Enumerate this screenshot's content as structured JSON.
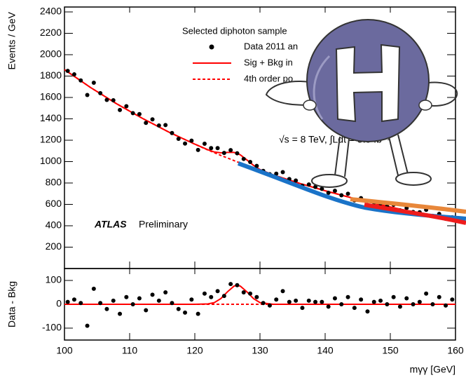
{
  "chart_data": [
    {
      "type": "line",
      "ylabel": "Events / GeV",
      "xlim": [
        100,
        160
      ],
      "ylim": [
        0,
        2400
      ],
      "yticks": [
        200,
        400,
        600,
        800,
        1000,
        1200,
        1400,
        1600,
        1800,
        2000,
        2200,
        2400
      ],
      "legend": "upper center",
      "annotations": [
        "Selected diphoton sample",
        "√s = 8 TeV, ∫Ldt = 5.9 fb⁻¹",
        "ATLAS",
        "Preliminary"
      ],
      "series": [
        {
          "name": "Data 2011 an",
          "color": "#000000",
          "style": "points",
          "x": [
            100.5,
            101.5,
            102.5,
            103.5,
            104.5,
            105.5,
            106.5,
            107.5,
            108.5,
            109.5,
            110.5,
            111.5,
            112.5,
            113.5,
            114.5,
            115.5,
            116.5,
            117.5,
            118.5,
            119.5,
            120.5,
            121.5,
            122.5,
            123.5,
            124.5,
            125.5,
            126.5,
            127.5,
            128.5,
            129.5,
            130.5,
            131.5,
            132.5,
            133.5,
            134.5,
            135.5,
            136.5,
            137.5,
            138.5,
            139.5,
            140.5,
            141.5,
            142.5,
            143.5,
            144.5,
            145.5,
            146.5,
            147.5,
            148.5,
            149.5,
            150.5,
            151.5,
            152.5,
            153.5,
            154.5,
            155.5,
            156.5,
            157.5,
            158.5,
            159.5
          ],
          "values": [
            1848,
            1816,
            1759,
            1623,
            1738,
            1640,
            1577,
            1574,
            1483,
            1518,
            1453,
            1444,
            1362,
            1395,
            1338,
            1342,
            1267,
            1213,
            1169,
            1196,
            1109,
            1167,
            1126,
            1126,
            1081,
            1107,
            1078,
            1025,
            997,
            960,
            913,
            882,
            887,
            902,
            837,
            823,
            774,
            786,
            763,
            745,
            708,
            727,
            685,
            699,
            638,
            658,
            593,
            619,
            610,
            581,
            597,
            544,
            566,
            529,
            526,
            549,
            493,
            511,
            465,
            479
          ]
        },
        {
          "name": "Sig + Bkg in",
          "color": "#ff0000",
          "style": "solid",
          "x": [
            100,
            104,
            108,
            112,
            116,
            120,
            122,
            123,
            124,
            125,
            126,
            126.5,
            127,
            128,
            129,
            130,
            132,
            136,
            140,
            144,
            148,
            152,
            156,
            160
          ],
          "values": [
            1860,
            1693,
            1541,
            1403,
            1277,
            1163,
            1111,
            1090,
            1082,
            1086,
            1086,
            1078,
            1062,
            1015,
            965,
            926,
            877,
            798,
            727,
            662,
            603,
            549,
            499,
            454
          ]
        },
        {
          "name": "4th order po",
          "color": "#ff0000",
          "style": "dashed",
          "x": [
            100,
            104,
            108,
            112,
            116,
            120,
            122,
            123,
            124,
            125,
            126,
            126.5,
            127,
            128,
            129,
            130,
            132,
            136,
            140,
            144,
            148,
            152,
            156,
            160
          ],
          "values": [
            1860,
            1693,
            1541,
            1403,
            1277,
            1163,
            1109,
            1083,
            1058,
            1034,
            1010,
            998,
            986,
            963,
            941,
            919,
            877,
            798,
            727,
            662,
            603,
            549,
            499,
            454
          ]
        }
      ]
    },
    {
      "type": "line",
      "ylabel": "Data - Bkg",
      "xlabel": "mγγ [GeV]",
      "xlim": [
        100,
        160
      ],
      "ylim": [
        -150,
        150
      ],
      "yticks": [
        -100,
        0,
        100
      ],
      "xticks": [
        100,
        110,
        120,
        130,
        140,
        150,
        160
      ],
      "series": [
        {
          "name": "Data 2011 an",
          "color": "#000000",
          "style": "points",
          "x": [
            100.5,
            101.5,
            102.5,
            103.5,
            104.5,
            105.5,
            106.5,
            107.5,
            108.5,
            109.5,
            110.5,
            111.5,
            112.5,
            113.5,
            114.5,
            115.5,
            116.5,
            117.5,
            118.5,
            119.5,
            120.5,
            121.5,
            122.5,
            123.5,
            124.5,
            125.5,
            126.5,
            127.5,
            128.5,
            129.5,
            130.5,
            131.5,
            132.5,
            133.5,
            134.5,
            135.5,
            136.5,
            137.5,
            138.5,
            139.5,
            140.5,
            141.5,
            142.5,
            143.5,
            144.5,
            145.5,
            146.5,
            147.5,
            148.5,
            149.5,
            150.5,
            151.5,
            152.5,
            153.5,
            154.5,
            155.5,
            156.5,
            157.5,
            158.5,
            159.5
          ],
          "values": [
            10,
            20,
            5,
            -90,
            65,
            5,
            -20,
            15,
            -40,
            30,
            0,
            25,
            -25,
            40,
            15,
            50,
            5,
            -20,
            -35,
            20,
            -40,
            45,
            30,
            55,
            35,
            85,
            80,
            50,
            45,
            30,
            5,
            -5,
            20,
            55,
            10,
            15,
            -15,
            15,
            10,
            10,
            -10,
            25,
            0,
            30,
            -15,
            20,
            -30,
            10,
            15,
            0,
            30,
            -10,
            25,
            0,
            10,
            45,
            0,
            30,
            -5,
            20
          ]
        },
        {
          "name": "Sig + Bkg in",
          "color": "#ff0000",
          "style": "solid",
          "x": [
            100,
            120,
            122,
            123,
            124,
            125,
            126,
            126.5,
            127,
            128,
            129,
            130,
            132,
            160
          ],
          "values": [
            0,
            0,
            1.5,
            7,
            24,
            52,
            76,
            80,
            76,
            52,
            24,
            7,
            0,
            0
          ]
        },
        {
          "name": "4th order po",
          "color": "#ff0000",
          "style": "dashed",
          "x": [
            100,
            160
          ],
          "values": [
            0,
            0
          ]
        }
      ]
    }
  ]
}
